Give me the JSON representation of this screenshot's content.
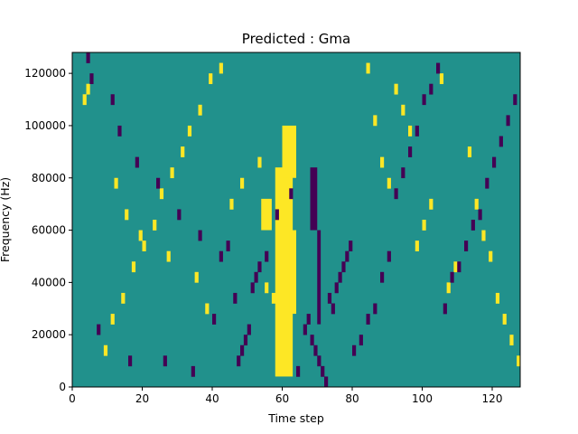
{
  "chart_data": {
    "type": "heatmap",
    "title": "Predicted : Gma",
    "xlabel": "Time step",
    "ylabel": "Frequency (Hz)",
    "xlim": [
      0,
      128
    ],
    "ylim": [
      0,
      128000
    ],
    "xticks": [
      0,
      20,
      40,
      60,
      80,
      100,
      120
    ],
    "yticks": [
      0,
      20000,
      40000,
      60000,
      80000,
      100000,
      120000
    ],
    "xtick_labels": [
      "0",
      "20",
      "40",
      "60",
      "80",
      "100",
      "120"
    ],
    "ytick_labels": [
      "0",
      "20000",
      "40000",
      "60000",
      "80000",
      "100000",
      "120000"
    ],
    "grid": false,
    "colormap": "viridis",
    "colors": {
      "background": "#21918c",
      "high": "#fde725",
      "low": "#440154"
    },
    "grid_size": {
      "columns": 128,
      "rows": 32,
      "row_height_hz": 4000
    },
    "low_cells": [
      [
        4,
        31
      ],
      [
        5,
        29
      ],
      [
        7,
        5
      ],
      [
        16,
        2
      ],
      [
        26,
        2
      ],
      [
        34,
        1
      ],
      [
        40,
        6
      ],
      [
        44,
        13
      ],
      [
        46,
        8
      ],
      [
        47,
        2
      ],
      [
        48,
        3
      ],
      [
        49,
        4
      ],
      [
        50,
        5
      ],
      [
        51,
        9
      ],
      [
        52,
        10
      ],
      [
        53,
        11
      ],
      [
        55,
        12
      ],
      [
        64,
        1
      ],
      [
        66,
        5
      ],
      [
        67,
        6
      ],
      [
        68,
        4
      ],
      [
        69,
        3
      ],
      [
        70,
        2
      ],
      [
        71,
        1
      ],
      [
        72,
        0
      ],
      [
        73,
        8
      ],
      [
        74,
        7
      ],
      [
        75,
        9
      ],
      [
        76,
        10
      ],
      [
        77,
        11
      ],
      [
        78,
        12
      ],
      [
        79,
        13
      ],
      [
        80,
        3
      ],
      [
        82,
        4
      ],
      [
        84,
        6
      ],
      [
        86,
        7
      ],
      [
        88,
        10
      ],
      [
        90,
        12
      ],
      [
        92,
        18
      ],
      [
        94,
        20
      ],
      [
        96,
        22
      ],
      [
        98,
        24
      ],
      [
        100,
        27
      ],
      [
        102,
        28
      ],
      [
        104,
        30
      ],
      [
        106,
        7
      ],
      [
        108,
        10
      ],
      [
        110,
        11
      ],
      [
        112,
        13
      ],
      [
        114,
        15
      ],
      [
        116,
        16
      ],
      [
        118,
        19
      ],
      [
        120,
        21
      ],
      [
        122,
        23
      ],
      [
        124,
        25
      ],
      [
        126,
        27
      ],
      [
        11,
        27
      ],
      [
        13,
        24
      ],
      [
        18,
        21
      ],
      [
        24,
        19
      ],
      [
        30,
        16
      ],
      [
        36,
        14
      ],
      [
        42,
        12
      ],
      [
        58,
        16
      ],
      [
        62,
        18
      ]
    ],
    "high_cells": [
      [
        3,
        27
      ],
      [
        4,
        28
      ],
      [
        9,
        3
      ],
      [
        11,
        6
      ],
      [
        14,
        8
      ],
      [
        17,
        11
      ],
      [
        20,
        13
      ],
      [
        23,
        15
      ],
      [
        25,
        18
      ],
      [
        28,
        20
      ],
      [
        31,
        22
      ],
      [
        33,
        24
      ],
      [
        36,
        26
      ],
      [
        39,
        29
      ],
      [
        42,
        30
      ],
      [
        45,
        17
      ],
      [
        48,
        19
      ],
      [
        53,
        21
      ],
      [
        55,
        9
      ],
      [
        57,
        8
      ],
      [
        84,
        30
      ],
      [
        86,
        25
      ],
      [
        88,
        21
      ],
      [
        90,
        19
      ],
      [
        92,
        28
      ],
      [
        94,
        26
      ],
      [
        96,
        24
      ],
      [
        98,
        13
      ],
      [
        100,
        15
      ],
      [
        102,
        17
      ],
      [
        105,
        29
      ],
      [
        107,
        9
      ],
      [
        109,
        11
      ],
      [
        113,
        22
      ],
      [
        115,
        17
      ],
      [
        117,
        14
      ],
      [
        119,
        12
      ],
      [
        121,
        8
      ],
      [
        123,
        6
      ],
      [
        125,
        4
      ],
      [
        127,
        2
      ],
      [
        12,
        19
      ],
      [
        15,
        16
      ],
      [
        19,
        14
      ],
      [
        27,
        12
      ],
      [
        35,
        10
      ],
      [
        38,
        7
      ]
    ],
    "high_bands": [
      {
        "x_start": 58,
        "x_end": 63,
        "y_start_hz": 4000,
        "y_end_hz": 84000
      },
      {
        "x_start": 60,
        "x_end": 64,
        "y_start_hz": 80000,
        "y_end_hz": 100000
      },
      {
        "x_start": 62,
        "x_end": 64,
        "y_start_hz": 28000,
        "y_end_hz": 60000
      },
      {
        "x_start": 54,
        "x_end": 57,
        "y_start_hz": 60000,
        "y_end_hz": 72000
      }
    ],
    "low_bands": [
      {
        "x_start": 70,
        "x_end": 71,
        "y_start_hz": 24000,
        "y_end_hz": 60000
      },
      {
        "x_start": 68,
        "x_end": 70,
        "y_start_hz": 60000,
        "y_end_hz": 84000
      }
    ]
  }
}
